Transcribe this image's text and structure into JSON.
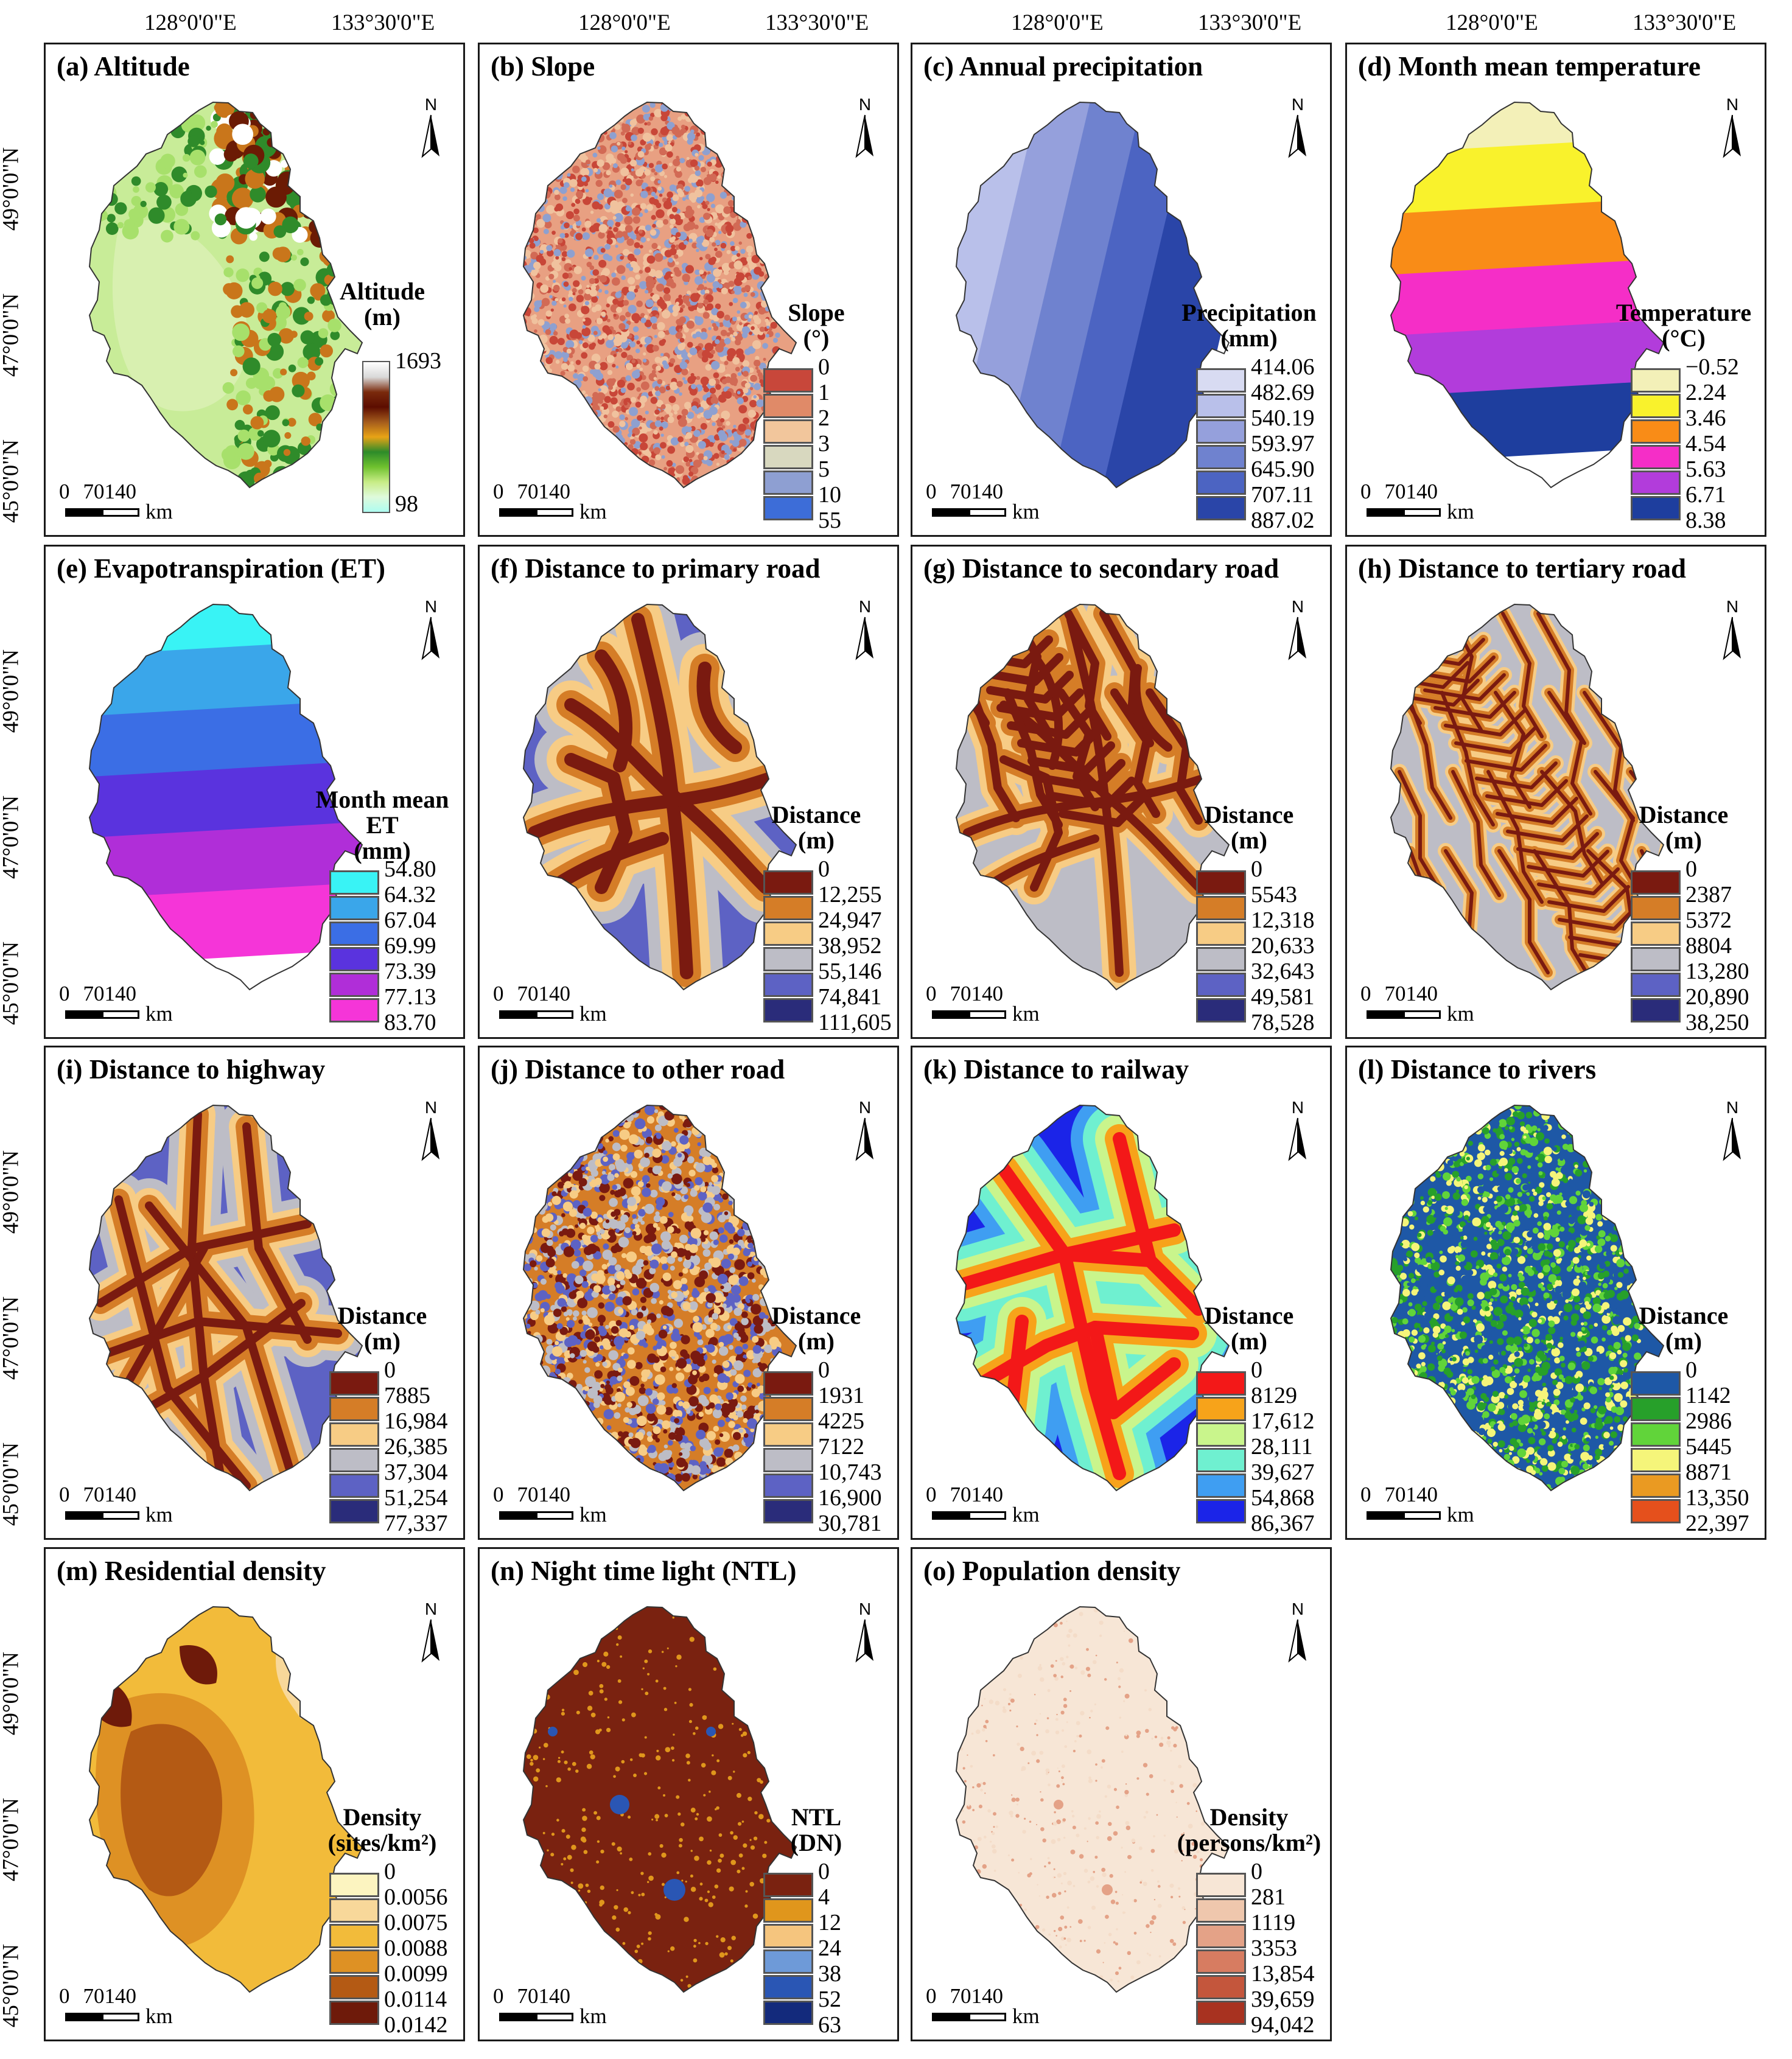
{
  "longitude_labels": [
    "128°0'0\"E",
    "133°30'0\"E"
  ],
  "latitude_labels": [
    "49°0'0\"N",
    "47°0'0\"N",
    "45°0'0\"N"
  ],
  "scale": {
    "ticks": [
      "0",
      "70",
      "140"
    ],
    "unit": "km"
  },
  "north_label": "N",
  "panels": [
    {
      "title": "(a) Altitude",
      "legend_title": [
        "Altitude",
        "(m)"
      ],
      "type": "ramp",
      "labels": [
        "1693",
        "98"
      ],
      "ramp_colors": [
        "#ffffff",
        "#d9d9d9",
        "#7a2a0c",
        "#5c0d00",
        "#a55c1c",
        "#e8a316",
        "#2d8b2a",
        "#6fc12e",
        "#c7ec86",
        "#dffadb",
        "#aefcf0"
      ],
      "map_colors": [
        "#a7e06b",
        "#c8ec98",
        "#d8f0b0",
        "#2f8b2a",
        "#c9761b",
        "#6b1b04",
        "#ffffff"
      ]
    },
    {
      "title": "(b) Slope",
      "legend_title": [
        "Slope",
        "(°)"
      ],
      "type": "class",
      "labels": [
        "0",
        "1",
        "2",
        "3",
        "5",
        "10",
        "55"
      ],
      "colors": [
        "#c8473a",
        "#e08a68",
        "#f2c69c",
        "#d8d8bf",
        "#8e9fd2",
        "#3d6dd8"
      ],
      "map_colors": [
        "#e8a082",
        "#d26a55",
        "#f0c29e",
        "#c84638",
        "#8ea0d0"
      ]
    },
    {
      "title": "(c) Annual precipitation",
      "legend_title": [
        "Precipitation",
        "(mm)"
      ],
      "type": "class",
      "labels": [
        "414.06",
        "482.69",
        "540.19",
        "593.97",
        "645.90",
        "707.11",
        "887.02"
      ],
      "colors": [
        "#d8dbf2",
        "#b9c0ea",
        "#95a0dc",
        "#6f82cf",
        "#4c64c2",
        "#2a45a8"
      ],
      "map_colors": [
        "#d8dbf2",
        "#b9c0ea",
        "#95a0dc",
        "#6f82cf",
        "#4c64c2",
        "#2a45a8"
      ]
    },
    {
      "title": "(d) Month mean temperature",
      "legend_title": [
        "Temperature",
        "(°C)"
      ],
      "type": "class",
      "labels": [
        "−0.52",
        "2.24",
        "3.46",
        "4.54",
        "5.63",
        "6.71",
        "8.38"
      ],
      "colors": [
        "#f3f0b8",
        "#f9f22c",
        "#f98c17",
        "#f52ec7",
        "#b23cdb",
        "#1e3e9e"
      ],
      "map_colors": [
        "#f3f0b8",
        "#f9f22c",
        "#f98c17",
        "#f52ec7",
        "#b23cdb",
        "#1e3e9e"
      ]
    },
    {
      "title": "(e) Evapotranspiration (ET)",
      "legend_title": [
        "Month mean",
        "ET",
        "(mm)"
      ],
      "type": "class",
      "labels": [
        "54.80",
        "64.32",
        "67.04",
        "69.99",
        "73.39",
        "77.13",
        "83.70"
      ],
      "colors": [
        "#39f3f5",
        "#3aa6ea",
        "#3b6ee5",
        "#5a33de",
        "#b02ed8",
        "#f535d8"
      ],
      "map_colors": [
        "#39f3f5",
        "#3aa6ea",
        "#3b6ee5",
        "#5a33de",
        "#b02ed8",
        "#f535d8"
      ]
    },
    {
      "title": "(f) Distance to primary road",
      "legend_title": [
        "Distance",
        "(m)"
      ],
      "type": "class",
      "labels": [
        "0",
        "12,255",
        "24,947",
        "38,952",
        "55,146",
        "74,841",
        "111,605"
      ],
      "colors": [
        "#7a1a10",
        "#d57d27",
        "#f7cc85",
        "#bdbdc6",
        "#5d62c4",
        "#2a2c7a"
      ],
      "map_colors": [
        "#bdbdc6",
        "#f7cc85",
        "#d57d27",
        "#7a1a10",
        "#5d62c4"
      ]
    },
    {
      "title": "(g) Distance to secondary road",
      "legend_title": [
        "Distance",
        "(m)"
      ],
      "type": "class",
      "labels": [
        "0",
        "5543",
        "12,318",
        "20,633",
        "32,643",
        "49,581",
        "78,528"
      ],
      "colors": [
        "#7a1a10",
        "#d57d27",
        "#f7cc85",
        "#bdbdc6",
        "#5d62c4",
        "#2a2c7a"
      ],
      "map_colors": [
        "#f7cc85",
        "#d57d27",
        "#7a1a10",
        "#bdbdc6"
      ]
    },
    {
      "title": "(h) Distance to tertiary road",
      "legend_title": [
        "Distance",
        "(m)"
      ],
      "type": "class",
      "labels": [
        "0",
        "2387",
        "5372",
        "8804",
        "13,280",
        "20,890",
        "38,250"
      ],
      "colors": [
        "#7a1a10",
        "#d57d27",
        "#f7cc85",
        "#bdbdc6",
        "#5d62c4",
        "#2a2c7a"
      ],
      "map_colors": [
        "#d57d27",
        "#7a1a10",
        "#f7cc85",
        "#bdbdc6"
      ]
    },
    {
      "title": "(i) Distance to highway",
      "legend_title": [
        "Distance",
        "(m)"
      ],
      "type": "class",
      "labels": [
        "0",
        "7885",
        "16,984",
        "26,385",
        "37,304",
        "51,254",
        "77,337"
      ],
      "colors": [
        "#7a1a10",
        "#d57d27",
        "#f7cc85",
        "#bdbdc6",
        "#5d62c4",
        "#2a2c7a"
      ],
      "map_colors": [
        "#bdbdc6",
        "#f7cc85",
        "#d57d27",
        "#7a1a10",
        "#5d62c4"
      ]
    },
    {
      "title": "(j) Distance to other road",
      "legend_title": [
        "Distance",
        "(m)"
      ],
      "type": "class",
      "labels": [
        "0",
        "1931",
        "4225",
        "7122",
        "10,743",
        "16,900",
        "30,781"
      ],
      "colors": [
        "#7a1a10",
        "#d57d27",
        "#f7cc85",
        "#bdbdc6",
        "#5d62c4",
        "#2a2c7a"
      ],
      "map_colors": [
        "#d57d27",
        "#7a1a10",
        "#f7cc85",
        "#bdbdc6",
        "#5d62c4"
      ]
    },
    {
      "title": "(k) Distance to railway",
      "legend_title": [
        "Distance",
        "(m)"
      ],
      "type": "class",
      "labels": [
        "0",
        "8129",
        "17,612",
        "28,111",
        "39,627",
        "54,868",
        "86,367"
      ],
      "colors": [
        "#f31818",
        "#f7a31a",
        "#c9f58c",
        "#6ff0d0",
        "#3f9ef2",
        "#1b24e8"
      ],
      "map_colors": [
        "#f7a31a",
        "#c9f58c",
        "#6ff0d0",
        "#3f9ef2",
        "#f31818"
      ]
    },
    {
      "title": "(l) Distance to rivers",
      "legend_title": [
        "Distance",
        "(m)"
      ],
      "type": "class",
      "labels": [
        "0",
        "1142",
        "2986",
        "5445",
        "8871",
        "13,350",
        "22,397"
      ],
      "colors": [
        "#1e58a6",
        "#27a02a",
        "#61d43a",
        "#f5f57a",
        "#ea9a22",
        "#e5501c"
      ],
      "map_colors": [
        "#1e58a6",
        "#27a02a",
        "#1e58a6",
        "#61d43a",
        "#f5f57a"
      ]
    },
    {
      "title": "(m) Residential density",
      "legend_title": [
        "Density",
        "(sites/km²)"
      ],
      "type": "class",
      "labels": [
        "0",
        "0.0056",
        "0.0075",
        "0.0088",
        "0.0099",
        "0.0114",
        "0.0142"
      ],
      "colors": [
        "#fcf4c0",
        "#f8d89a",
        "#f2bb3a",
        "#de9124",
        "#b45a14",
        "#6e1a0a"
      ],
      "map_colors": [
        "#f2bb3a",
        "#de9124",
        "#b45a14",
        "#f8d89a",
        "#6e1a0a"
      ]
    },
    {
      "title": "(n) Night time light (NTL)",
      "legend_title": [
        "NTL",
        "(DN)"
      ],
      "type": "class",
      "labels": [
        "0",
        "4",
        "12",
        "24",
        "38",
        "52",
        "63"
      ],
      "colors": [
        "#7a2210",
        "#e0961c",
        "#f5c57e",
        "#6e9ad8",
        "#2a56b4",
        "#132a7c"
      ],
      "map_colors": [
        "#7a2210",
        "#7a2210",
        "#e0961c",
        "#2a56b4"
      ]
    },
    {
      "title": "(o) Population density",
      "legend_title": [
        "Density",
        "(persons/km²)"
      ],
      "type": "class",
      "labels": [
        "0",
        "281",
        "1119",
        "3353",
        "13,854",
        "39,659",
        "94,042"
      ],
      "colors": [
        "#f7e6d6",
        "#efc7ad",
        "#e4a287",
        "#d77c61",
        "#c4563c",
        "#a83220"
      ],
      "map_colors": [
        "#f7e6d6",
        "#f4dcc8",
        "#e4a287"
      ]
    }
  ]
}
